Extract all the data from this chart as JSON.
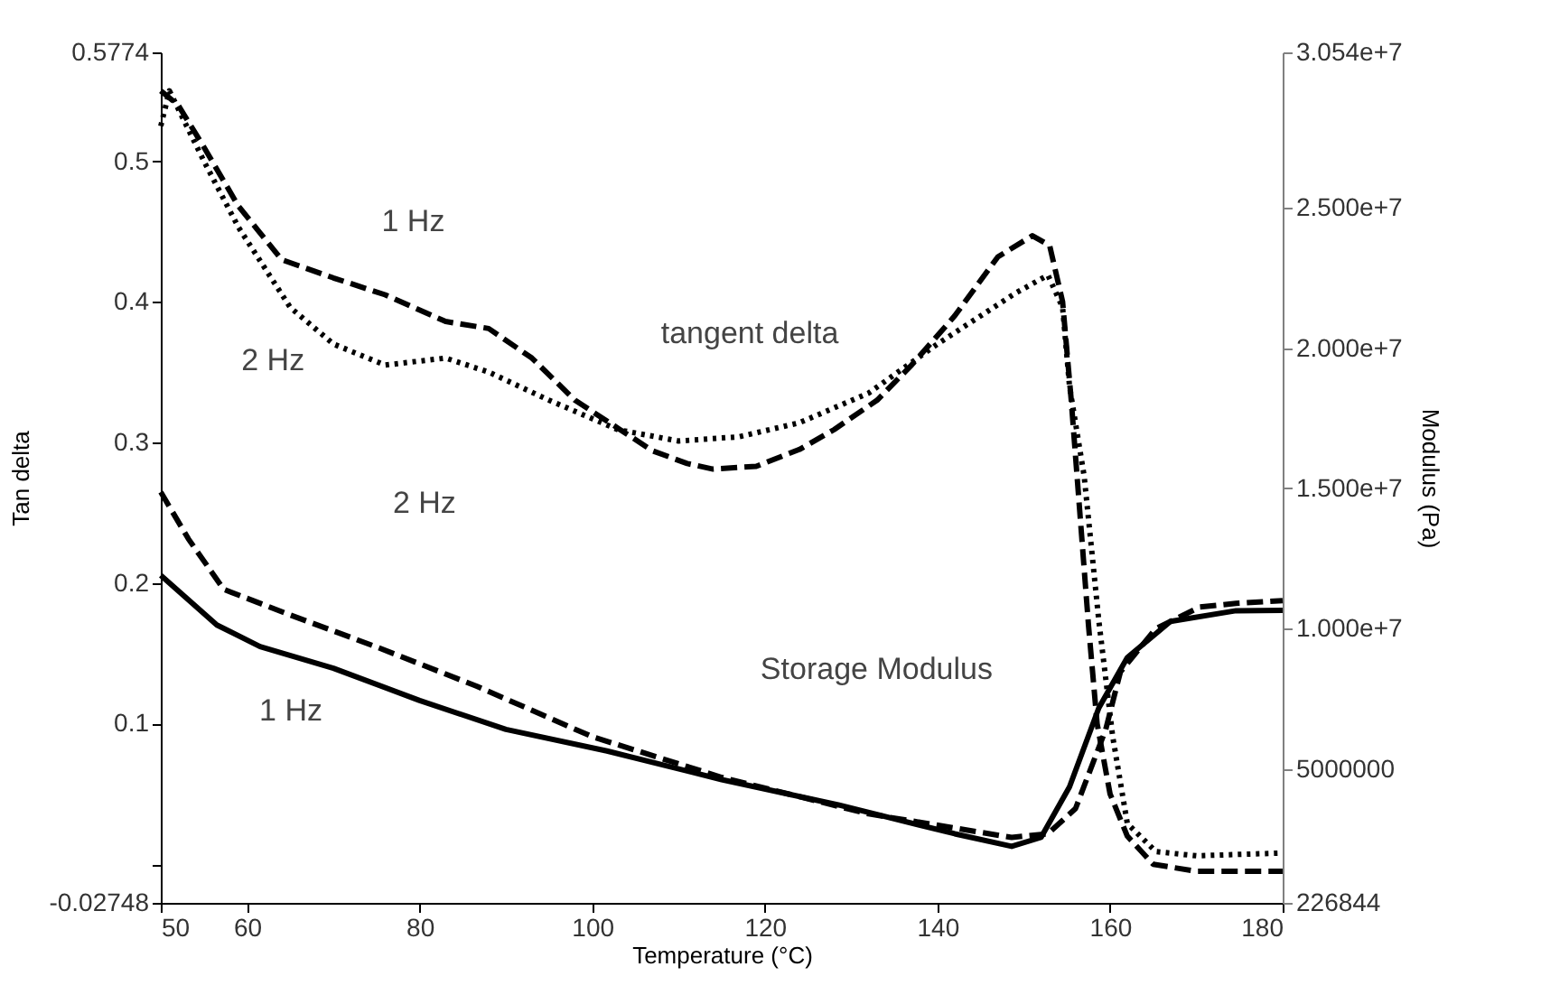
{
  "chart_data": {
    "type": "line",
    "xlabel": "Temperature (°C)",
    "ylabel": "Tan delta",
    "y2label": "Modulus (Pa)",
    "xlim": [
      50,
      180
    ],
    "xticks": [
      50,
      60,
      80,
      100,
      120,
      140,
      160,
      180
    ],
    "ylim": [
      -0.02748,
      0.5774
    ],
    "yticks": [
      -0.02748,
      {
        "value": 0,
        "label": null
      },
      0.1,
      0.2,
      0.3,
      0.4,
      0.5,
      0.5774
    ],
    "y2lim": [
      226844,
      30540000
    ],
    "y2ticks": [
      226844,
      5000000,
      {
        "value": 10000000,
        "label": "1.000e+7"
      },
      {
        "value": 15000000,
        "label": "1.500e+7"
      },
      {
        "value": 20000000,
        "label": "2.000e+7"
      },
      {
        "value": 25000000,
        "label": "2.500e+7"
      },
      {
        "value": 30540000,
        "label": "3.054e+7"
      }
    ],
    "grid": false,
    "marker": "none",
    "series": [
      {
        "color": "#000000",
        "line_style": "dashed",
        "x": [
          50,
          52,
          55,
          59,
          64,
          70,
          76,
          83,
          88,
          93,
          98,
          103,
          107,
          111,
          114,
          119,
          124,
          128,
          133,
          137,
          142,
          147,
          151,
          153,
          154.5,
          155.5,
          156.5,
          157.5,
          158.5,
          160,
          162,
          165,
          170,
          175,
          180
        ],
        "values": [
          0.55,
          0.54,
          0.51,
          0.468,
          0.43,
          0.417,
          0.405,
          0.386,
          0.381,
          0.36,
          0.33,
          0.31,
          0.294,
          0.285,
          0.281,
          0.283,
          0.295,
          0.309,
          0.33,
          0.355,
          0.39,
          0.432,
          0.447,
          0.44,
          0.4,
          0.33,
          0.25,
          0.17,
          0.1,
          0.05,
          0.02,
          0.0,
          -0.005,
          -0.005,
          -0.005
        ]
      },
      {
        "color": "#000000",
        "line_style": "dotted",
        "x": [
          50,
          51,
          55,
          59,
          65,
          70,
          76,
          83,
          88,
          95,
          103,
          110,
          117,
          124,
          132,
          140,
          149,
          152.8,
          154.5,
          155.3,
          157,
          158.7,
          160.3,
          162,
          165.3,
          170,
          175,
          180
        ],
        "values": [
          0.525,
          0.55,
          0.5,
          0.453,
          0.396,
          0.37,
          0.355,
          0.36,
          0.35,
          0.33,
          0.309,
          0.301,
          0.304,
          0.314,
          0.335,
          0.37,
          0.406,
          0.419,
          0.396,
          0.34,
          0.276,
          0.173,
          0.091,
          0.029,
          0.009,
          0.006,
          0.007,
          0.008
        ]
      },
      {
        "color": "#000000",
        "line_style": "solid",
        "axis": "y2",
        "x": [
          50,
          56.5,
          61.5,
          70,
          80,
          90,
          101.7,
          115,
          128.5,
          142,
          148.6,
          152,
          155.3,
          158.7,
          162,
          167,
          174.6,
          180
        ],
        "values": [
          11900000,
          10130000,
          9360000,
          8590000,
          7440000,
          6410000,
          5640000,
          4620000,
          3720000,
          2690000,
          2240000,
          2560000,
          4360000,
          7180000,
          8970000,
          10260000,
          10640000,
          10650000
        ]
      },
      {
        "color": "#000000",
        "line_style": "dashed",
        "axis": "y2",
        "x": [
          50,
          53.2,
          57.3,
          64.9,
          74.9,
          86.6,
          100,
          115,
          132,
          148.6,
          152.8,
          156,
          159.5,
          161.2,
          165.3,
          170.4,
          174.6,
          180
        ],
        "values": [
          14870000,
          13200000,
          11400000,
          10500000,
          9360000,
          7950000,
          6150000,
          4700000,
          3400000,
          2560000,
          2690000,
          3590000,
          6410000,
          8460000,
          10000000,
          10770000,
          10900000,
          11000000
        ]
      }
    ],
    "annotations": [
      "1 Hz",
      "2 Hz",
      "tangent delta",
      "2 Hz",
      "Storage Modulus",
      "1 Hz"
    ]
  }
}
